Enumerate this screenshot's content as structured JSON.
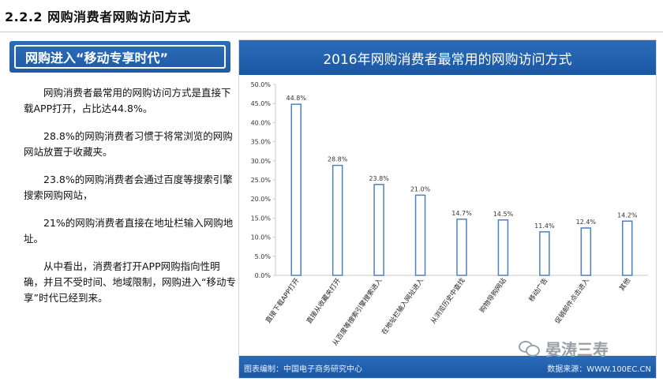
{
  "section": {
    "title": "2.2.2 网购消费者网购访问方式"
  },
  "banner": {
    "label": "网购进入“移动专享时代”"
  },
  "paragraphs": [
    "网购消费者最常用的网购访问方式是直接下载APP打开，占比达44.8%。",
    "28.8%的网购消费者习惯于将常浏览的网购网站放置于收藏夹。",
    "23.8%的网购消费者会通过百度等搜索引擎搜索网购网站，",
    "21%的网购消费者直接在地址栏输入网购地址。",
    "从中看出，消费者打开APP网购指向性明确，并且不受时间、地域限制，网购进入“移动专享”时代已经到来。"
  ],
  "chart_panel": {
    "title": "2016年网购消费者最常用的网购访问方式",
    "footer_left": "图表编制：中国电子商务研究中心",
    "footer_right": "数据来源：WWW.100EC.CN"
  },
  "watermark": {
    "text": "晏涛三寿",
    "icon": "wechat-icon"
  },
  "chart_data": {
    "type": "bar",
    "title": "2016年网购消费者最常用的网购访问方式",
    "categories": [
      "直接下载APP打开",
      "直接从收藏夹打开",
      "从百度等搜索引擎搜索进入",
      "在地址栏输入网址进入",
      "从浏览历史中查找",
      "购物导购网站",
      "移动广告",
      "促销邮件点击进入",
      "其他"
    ],
    "values": [
      44.8,
      28.8,
      23.8,
      21.0,
      14.7,
      14.5,
      11.4,
      12.4,
      14.2
    ],
    "value_labels": [
      "44.8%",
      "28.8%",
      "23.8%",
      "21.0%",
      "14.7%",
      "14.5%",
      "11.4%",
      "12.4%",
      "14.2%"
    ],
    "y_ticks": [
      "0.0%",
      "5.0%",
      "10.0%",
      "15.0%",
      "20.0%",
      "25.0%",
      "30.0%",
      "35.0%",
      "40.0%",
      "45.0%",
      "50.0%"
    ],
    "ylim": [
      0,
      50
    ],
    "xlabel": "",
    "ylabel": "",
    "grid": false,
    "bar_color": "#ffffff",
    "bar_border_color": "#4f81bd"
  }
}
